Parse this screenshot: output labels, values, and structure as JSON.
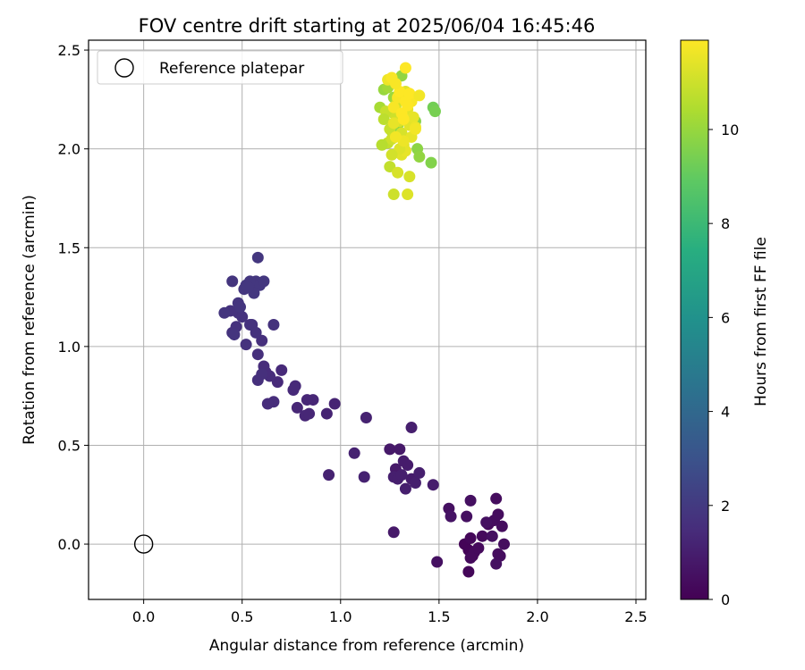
{
  "chart_data": {
    "type": "scatter",
    "title": "FOV centre drift starting at 2025/06/04 16:45:46",
    "xlabel": "Angular distance from reference (arcmin)",
    "ylabel": "Rotation from reference (arcmin)",
    "xlim": [
      -0.28,
      2.55
    ],
    "ylim": [
      -0.28,
      2.55
    ],
    "xticks": [
      0.0,
      0.5,
      1.0,
      1.5,
      2.0,
      2.5
    ],
    "yticks": [
      0.0,
      0.5,
      1.0,
      1.5,
      2.0,
      2.5
    ],
    "xtick_labels": [
      "0.0",
      "0.5",
      "1.0",
      "1.5",
      "2.0",
      "2.5"
    ],
    "ytick_labels": [
      "0.0",
      "0.5",
      "1.0",
      "1.5",
      "2.0",
      "2.5"
    ],
    "grid": true,
    "legend": {
      "position": "top-left",
      "entries": [
        "Reference platepar"
      ]
    },
    "reference_point": {
      "x": 0.0,
      "y": 0.0,
      "marker": "open-circle"
    },
    "colorbar": {
      "label": "Hours from first FF file",
      "colormap": "viridis",
      "range": [
        0,
        11.9
      ],
      "ticks": [
        0,
        2,
        4,
        6,
        8,
        10
      ],
      "tick_labels": [
        "0",
        "2",
        "4",
        "6",
        "8",
        "10"
      ]
    },
    "series": [
      {
        "x": [
          1.63,
          1.65,
          1.66,
          1.67,
          1.68,
          1.7,
          1.72,
          1.75,
          1.78,
          1.8,
          1.82,
          1.83,
          1.81,
          1.79,
          1.77,
          1.74,
          1.66,
          1.64,
          1.55,
          1.56,
          1.65,
          1.66,
          1.79,
          1.8,
          1.49
        ],
        "y": [
          0.0,
          -0.03,
          0.03,
          -0.06,
          -0.04,
          -0.02,
          0.04,
          0.1,
          0.12,
          0.15,
          0.09,
          0.0,
          -0.06,
          -0.1,
          0.04,
          0.11,
          0.22,
          0.14,
          0.18,
          0.14,
          -0.14,
          -0.07,
          0.23,
          -0.05,
          -0.09
        ],
        "hours": [
          0.1,
          0.1,
          0.2,
          0.2,
          0.3,
          0.3,
          0.3,
          0.3,
          0.4,
          0.4,
          0.4,
          0.4,
          0.4,
          0.5,
          0.5,
          0.5,
          0.5,
          0.5,
          0.5,
          0.6,
          0.2,
          0.3,
          0.4,
          0.4,
          0.5
        ]
      },
      {
        "x": [
          1.25,
          1.28,
          1.3,
          1.32,
          1.34,
          1.36,
          1.38,
          1.4,
          1.27,
          1.29,
          1.31,
          1.33,
          1.47,
          1.36,
          1.27,
          1.13,
          1.07,
          1.12,
          0.94
        ],
        "y": [
          0.48,
          0.38,
          0.48,
          0.42,
          0.4,
          0.33,
          0.31,
          0.36,
          0.34,
          0.33,
          0.35,
          0.28,
          0.3,
          0.59,
          0.06,
          0.64,
          0.46,
          0.34,
          0.35
        ],
        "hours": [
          0.8,
          0.8,
          0.8,
          0.9,
          0.9,
          0.9,
          1.0,
          1.0,
          1.0,
          1.0,
          1.0,
          1.0,
          0.9,
          1.0,
          0.8,
          1.1,
          1.1,
          1.1,
          1.1
        ]
      },
      {
        "x": [
          0.97,
          0.93,
          0.86,
          0.83,
          0.82,
          0.84,
          0.78,
          0.76,
          0.77,
          0.7,
          0.68,
          0.66,
          0.63,
          0.64,
          0.62,
          0.61,
          0.6,
          0.58,
          0.58,
          0.6,
          0.55,
          0.52,
          0.48,
          0.44,
          0.45,
          0.47,
          0.5,
          0.54,
          0.57,
          0.66
        ],
        "y": [
          0.71,
          0.66,
          0.73,
          0.73,
          0.65,
          0.66,
          0.69,
          0.78,
          0.8,
          0.88,
          0.82,
          0.72,
          0.71,
          0.85,
          0.87,
          0.9,
          1.03,
          0.96,
          0.83,
          0.86,
          1.11,
          1.01,
          1.17,
          1.18,
          1.07,
          1.1,
          1.15,
          1.11,
          1.07,
          1.11
        ],
        "hours": [
          1.2,
          1.2,
          1.3,
          1.3,
          1.3,
          1.3,
          1.3,
          1.4,
          1.4,
          1.4,
          1.4,
          1.5,
          1.5,
          1.5,
          1.5,
          1.5,
          1.6,
          1.6,
          1.6,
          1.6,
          1.7,
          1.7,
          1.7,
          1.7,
          1.7,
          1.7,
          1.7,
          1.7,
          1.7,
          1.7
        ]
      },
      {
        "x": [
          0.41,
          0.45,
          0.48,
          0.49,
          0.52,
          0.55,
          0.57,
          0.59,
          0.58,
          0.61,
          0.46,
          0.51,
          0.54,
          0.56,
          0.53
        ],
        "y": [
          1.17,
          1.33,
          1.22,
          1.2,
          1.31,
          1.29,
          1.33,
          1.31,
          1.45,
          1.33,
          1.06,
          1.29,
          1.33,
          1.27,
          1.3
        ],
        "hours": [
          1.8,
          1.8,
          1.8,
          1.8,
          1.9,
          1.9,
          1.9,
          1.9,
          1.9,
          1.9,
          1.8,
          1.9,
          1.9,
          1.9,
          1.9
        ]
      },
      {
        "x": [
          1.47,
          1.48,
          1.46,
          1.39,
          1.4,
          1.38,
          1.2,
          1.22,
          1.26,
          1.29,
          1.31,
          1.24,
          1.27
        ],
        "y": [
          2.21,
          2.19,
          1.93,
          2.0,
          1.96,
          2.14,
          2.21,
          2.3,
          2.09,
          2.12,
          2.37,
          2.31,
          2.26
        ],
        "hours": [
          9.3,
          9.4,
          9.6,
          9.8,
          9.9,
          9.7,
          10.3,
          10.0,
          9.9,
          9.9,
          9.9,
          10.2,
          10.1
        ]
      },
      {
        "x": [
          1.24,
          1.25,
          1.26,
          1.27,
          1.28,
          1.29,
          1.3,
          1.31,
          1.32,
          1.33,
          1.34,
          1.35,
          1.36,
          1.37,
          1.38,
          1.23,
          1.22,
          1.21,
          1.25,
          1.27,
          1.29,
          1.31,
          1.33,
          1.35,
          1.3,
          1.32,
          1.28,
          1.26,
          1.34,
          1.36,
          1.24,
          1.27
        ],
        "y": [
          2.03,
          2.1,
          2.05,
          2.18,
          2.22,
          2.25,
          2.14,
          2.08,
          2.02,
          2.29,
          2.2,
          2.12,
          2.06,
          2.16,
          2.11,
          2.19,
          2.15,
          2.02,
          1.91,
          1.77,
          1.88,
          1.97,
          1.99,
          1.86,
          2.0,
          2.04,
          2.06,
          1.97,
          1.77,
          2.24,
          2.35,
          2.13
        ],
        "hours": [
          10.8,
          10.9,
          11.0,
          11.0,
          11.1,
          11.1,
          11.2,
          11.2,
          11.3,
          11.3,
          11.4,
          11.4,
          11.5,
          11.5,
          11.6,
          10.9,
          10.7,
          10.6,
          10.8,
          11.0,
          11.2,
          11.4,
          11.5,
          11.2,
          11.3,
          11.6,
          11.7,
          11.1,
          11.3,
          11.8,
          11.6,
          11.5
        ]
      },
      {
        "x": [
          1.27,
          1.29,
          1.31,
          1.33,
          1.3,
          1.28,
          1.32,
          1.34,
          1.26,
          1.35,
          1.38,
          1.4,
          1.33
        ],
        "y": [
          2.21,
          2.26,
          2.18,
          2.24,
          2.29,
          2.33,
          2.15,
          2.22,
          2.36,
          2.28,
          2.1,
          2.27,
          2.41
        ],
        "hours": [
          11.8,
          11.8,
          11.9,
          11.9,
          11.9,
          11.8,
          11.9,
          11.9,
          11.8,
          11.9,
          11.7,
          11.7,
          11.9
        ]
      }
    ]
  }
}
